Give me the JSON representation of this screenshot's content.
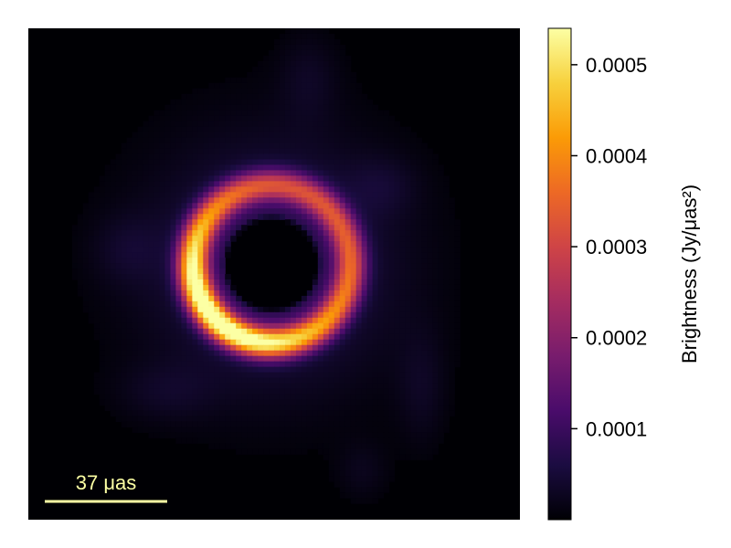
{
  "chart_data": {
    "type": "heatmap",
    "colormap": "inferno",
    "colormap_stops": [
      "#000004",
      "#1b0c41",
      "#4a0c6b",
      "#781c6d",
      "#a52c60",
      "#cf4446",
      "#ed6925",
      "#fb9b06",
      "#f7d13d",
      "#fcffa4"
    ],
    "image": {
      "ring_center": [
        0.495,
        0.48
      ],
      "ring_radius": 0.16,
      "shadow_radius": 0.09,
      "bright_side": "lower-left"
    },
    "colorbar": {
      "label": "Brightness (Jy/μas²)",
      "vmin": 0.0,
      "vmax": 0.00054,
      "ticks": [
        0.0001,
        0.0002,
        0.0003,
        0.0004,
        0.0005
      ],
      "tick_labels": [
        "0.0001",
        "0.0002",
        "0.0003",
        "0.0004",
        "0.0005"
      ]
    },
    "scale_bar": {
      "label": "37 μas",
      "color": "#fcffa4"
    }
  }
}
